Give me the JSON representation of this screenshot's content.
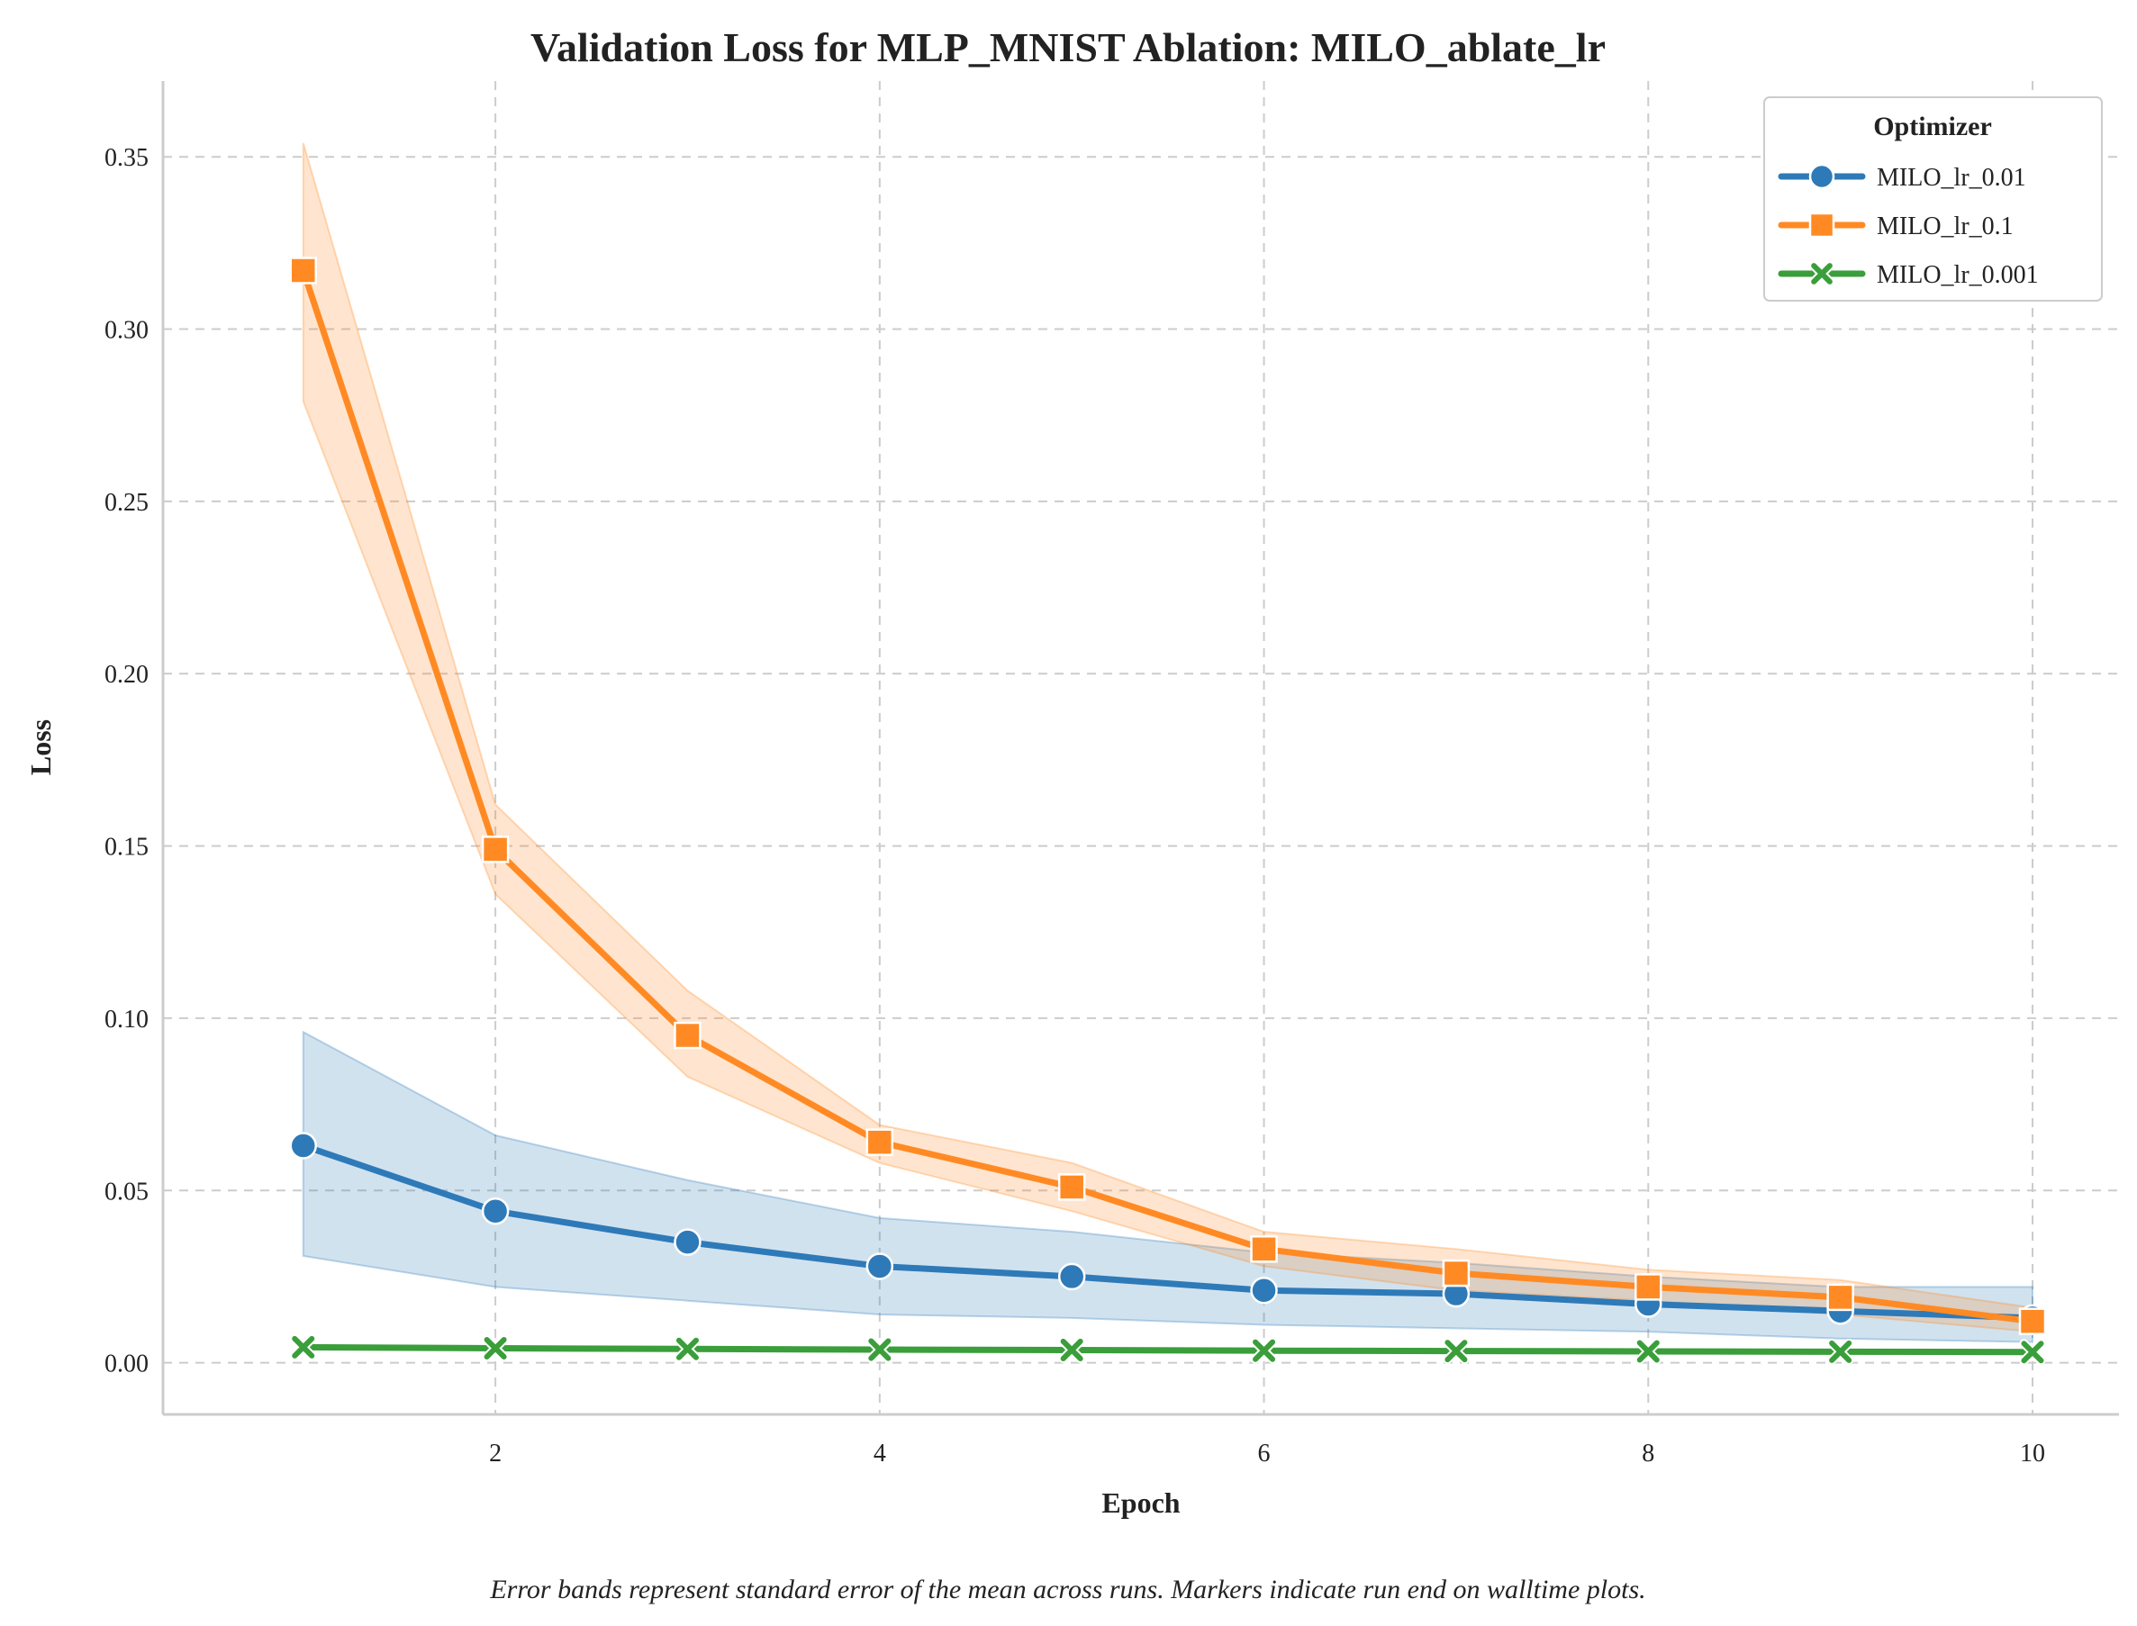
{
  "chart_data": {
    "type": "line",
    "title": "Validation Loss for MLP_MNIST Ablation: MILO_ablate_lr",
    "xlabel": "Epoch",
    "ylabel": "Loss",
    "x": [
      1,
      2,
      3,
      4,
      5,
      6,
      7,
      8,
      9,
      10
    ],
    "xlim": [
      0.27,
      10.45
    ],
    "ylim": [
      -0.015,
      0.372
    ],
    "xticks": [
      2,
      4,
      6,
      8,
      10
    ],
    "xtick_labels": [
      "2",
      "4",
      "6",
      "8",
      "10"
    ],
    "yticks": [
      0.0,
      0.05,
      0.1,
      0.15,
      0.2,
      0.25,
      0.3,
      0.35
    ],
    "ytick_labels": [
      "0.00",
      "0.05",
      "0.10",
      "0.15",
      "0.20",
      "0.25",
      "0.30",
      "0.35"
    ],
    "grid": true,
    "legend": {
      "title": "Optimizer",
      "placement": "top-right"
    },
    "series": [
      {
        "name": "MILO_lr_0.01",
        "color": "#2e7ab8",
        "marker": "circle",
        "values": [
          0.063,
          0.044,
          0.035,
          0.028,
          0.025,
          0.021,
          0.02,
          0.017,
          0.015,
          0.013
        ],
        "lower": [
          0.031,
          0.022,
          0.018,
          0.014,
          0.013,
          0.011,
          0.01,
          0.009,
          0.007,
          0.006
        ],
        "upper": [
          0.096,
          0.066,
          0.053,
          0.042,
          0.038,
          0.032,
          0.029,
          0.025,
          0.022,
          0.022
        ]
      },
      {
        "name": "MILO_lr_0.1",
        "color": "#ff8a24",
        "marker": "square",
        "values": [
          0.317,
          0.149,
          0.095,
          0.064,
          0.051,
          0.033,
          0.026,
          0.022,
          0.019,
          0.012
        ],
        "lower": [
          0.279,
          0.136,
          0.083,
          0.058,
          0.044,
          0.028,
          0.021,
          0.018,
          0.014,
          0.009
        ],
        "upper": [
          0.354,
          0.162,
          0.108,
          0.069,
          0.058,
          0.038,
          0.033,
          0.027,
          0.024,
          0.016
        ]
      },
      {
        "name": "MILO_lr_0.001",
        "color": "#3a9e3a",
        "marker": "x",
        "values": [
          0.0045,
          0.0042,
          0.004,
          0.0038,
          0.0037,
          0.0035,
          0.0034,
          0.0033,
          0.0032,
          0.0031
        ]
      }
    ],
    "caption": "Error bands represent standard error of the mean across runs. Markers indicate run end on walltime plots."
  }
}
